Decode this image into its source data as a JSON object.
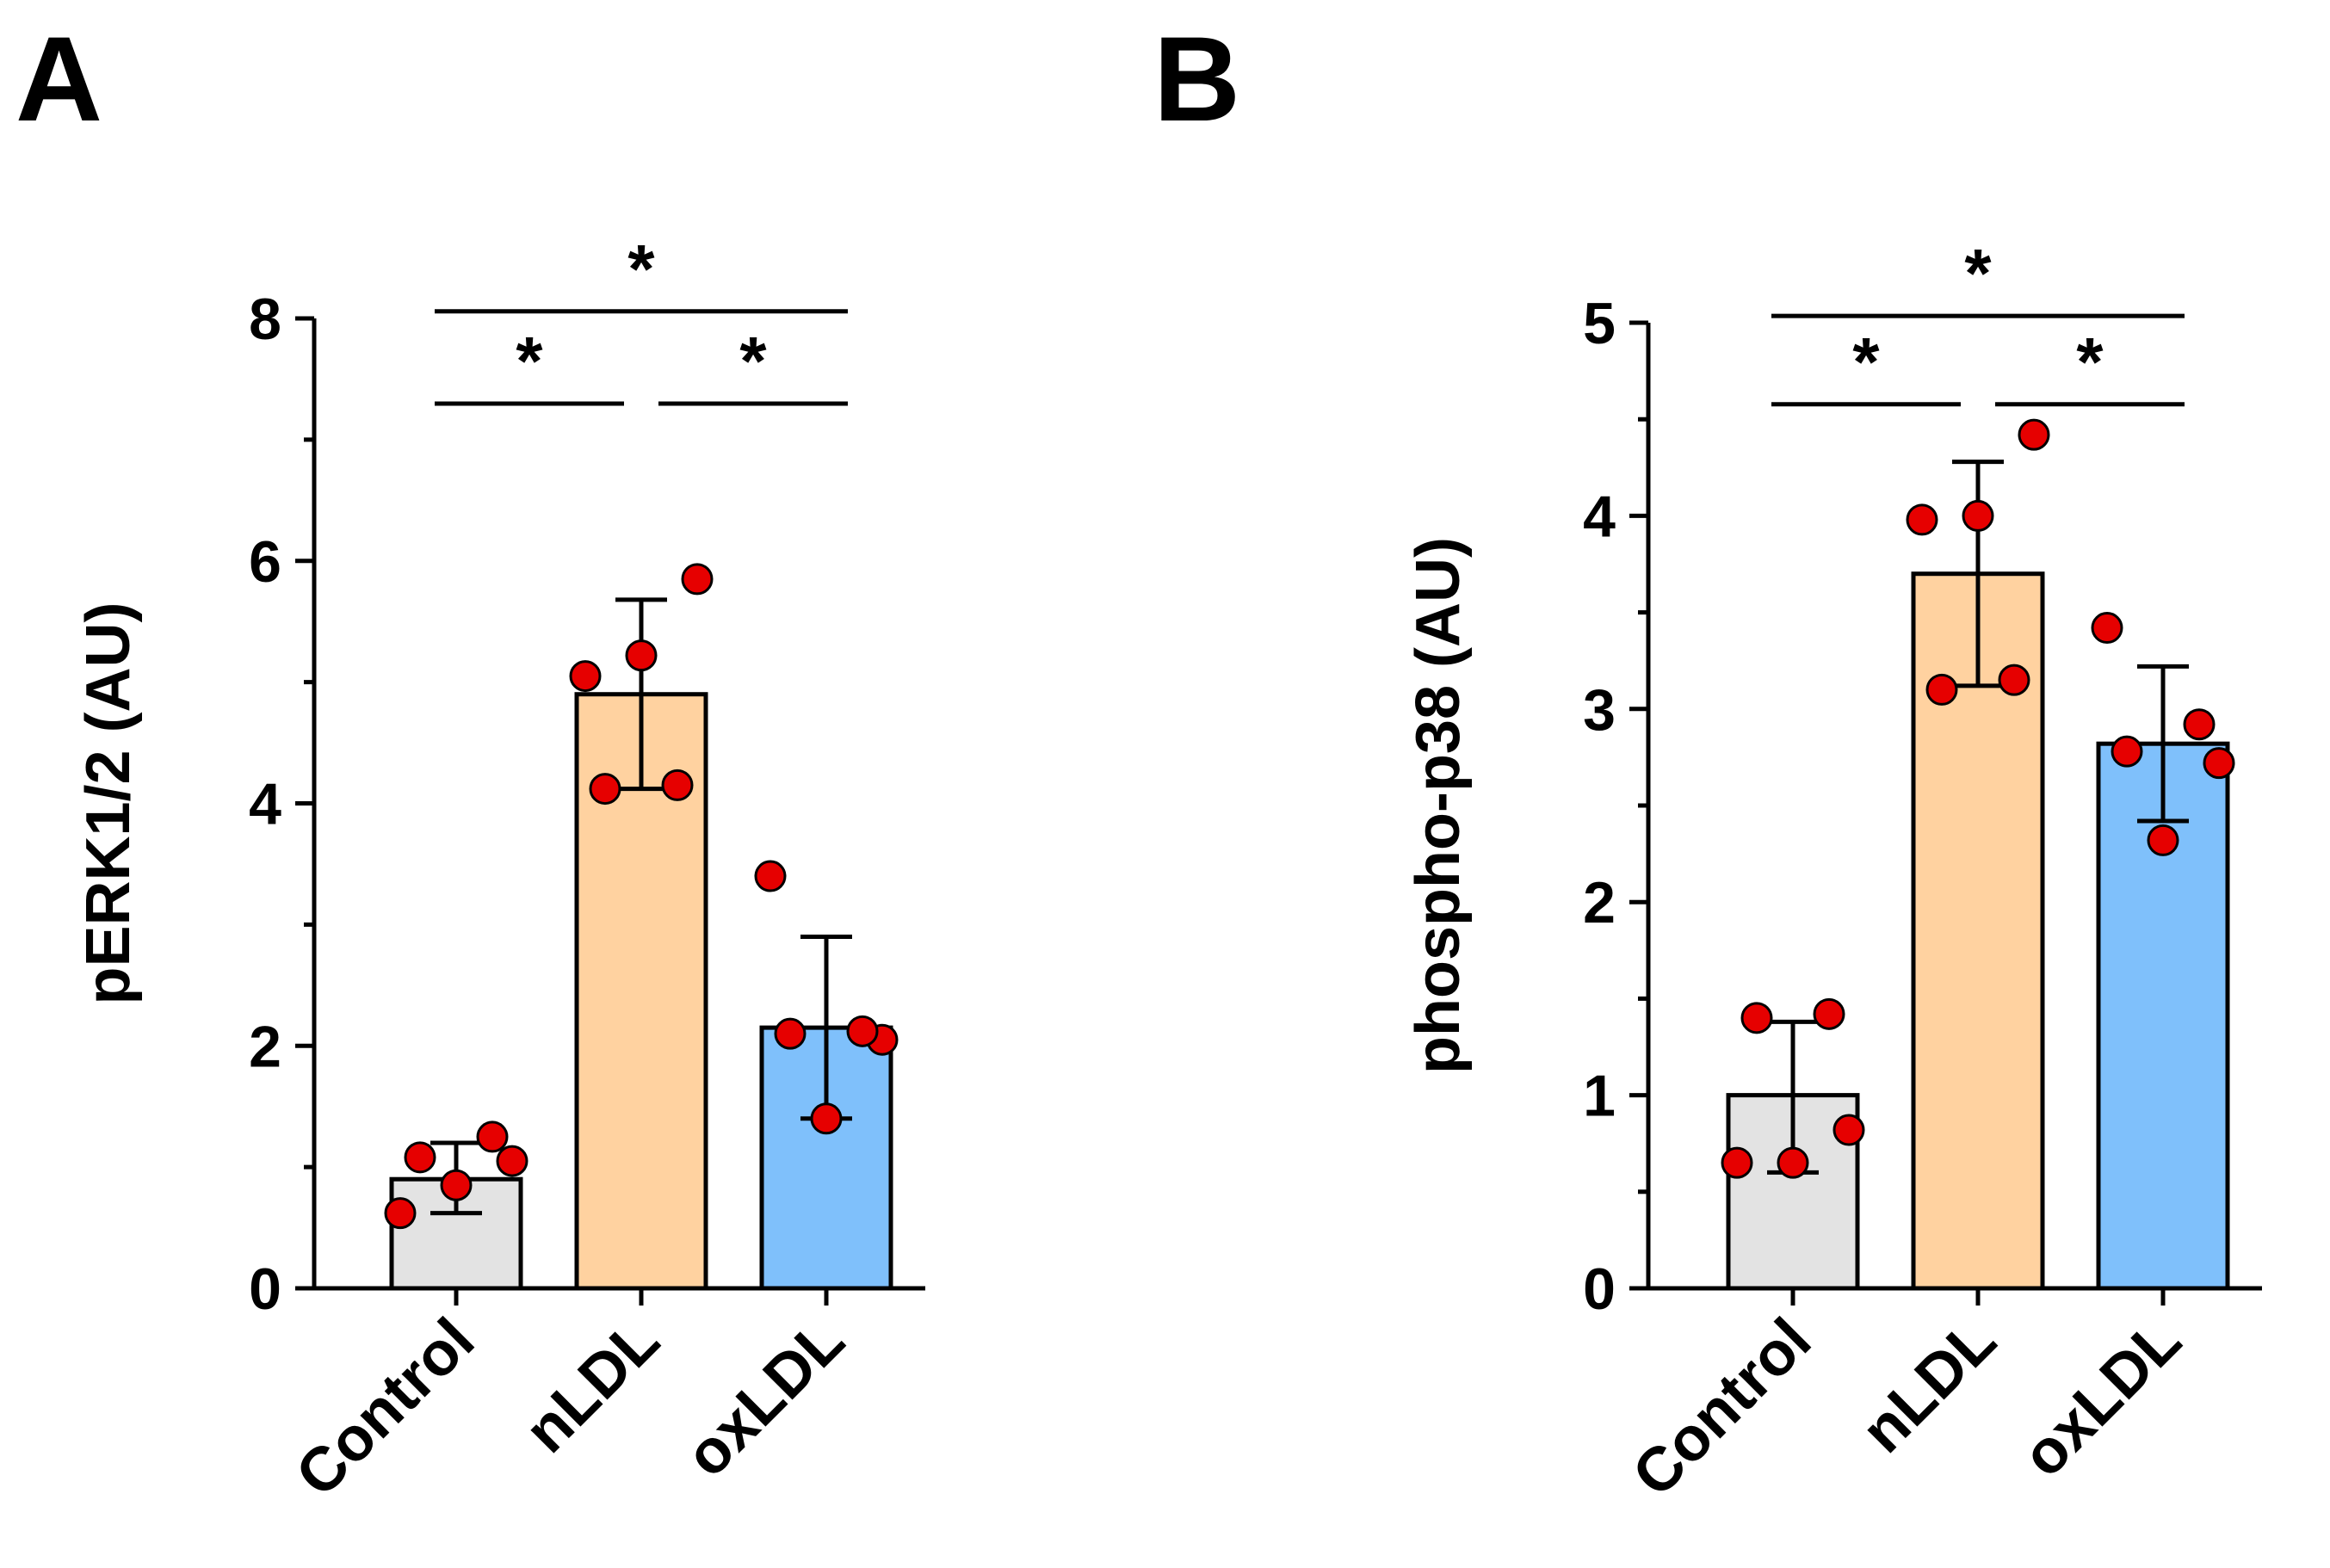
{
  "figure": {
    "panel_labels": [
      "A",
      "B"
    ]
  },
  "colors": {
    "control": "#e3e3e3",
    "nLDL": "#ffd2a0",
    "oxLDL": "#7fc0fb",
    "point": "#e60000",
    "axis": "#000000"
  },
  "chart_data": [
    {
      "panel": "A",
      "type": "bar",
      "title": "",
      "xlabel": "",
      "ylabel": "pERK1/2 (AU)",
      "ylim": [
        0,
        8
      ],
      "yticks": [
        0,
        2,
        4,
        6,
        8
      ],
      "categories": [
        "Control",
        "nLDL",
        "oxLDL"
      ],
      "values": [
        0.9,
        4.9,
        2.15
      ],
      "error": [
        [
          0.62,
          1.2
        ],
        [
          4.12,
          5.68
        ],
        [
          1.4,
          2.9
        ]
      ],
      "points": [
        [
          0.62,
          0.85,
          1.05,
          1.08,
          1.25
        ],
        [
          4.12,
          4.15,
          5.05,
          5.22,
          5.85
        ],
        [
          1.4,
          2.05,
          2.1,
          2.12,
          3.4
        ]
      ],
      "significance": [
        {
          "from": 0,
          "to": 1,
          "label": "*",
          "level": 1
        },
        {
          "from": 1,
          "to": 2,
          "label": "*",
          "level": 1
        },
        {
          "from": 0,
          "to": 2,
          "label": "*",
          "level": 2
        }
      ]
    },
    {
      "panel": "B",
      "type": "bar",
      "title": "",
      "xlabel": "",
      "ylabel": "phospho-p38 (AU)",
      "ylim": [
        0,
        5
      ],
      "yticks": [
        0,
        1,
        2,
        3,
        4,
        5
      ],
      "categories": [
        "Control",
        "nLDL",
        "oxLDL"
      ],
      "values": [
        1.0,
        3.7,
        2.82
      ],
      "error": [
        [
          0.6,
          1.38
        ],
        [
          3.12,
          4.28
        ],
        [
          2.42,
          3.22
        ]
      ],
      "points": [
        [
          0.65,
          0.65,
          0.82,
          1.4,
          1.42
        ],
        [
          3.1,
          3.15,
          3.98,
          4.0,
          4.42
        ],
        [
          2.32,
          2.72,
          2.78,
          2.92,
          3.42
        ]
      ],
      "significance": [
        {
          "from": 0,
          "to": 1,
          "label": "*",
          "level": 1
        },
        {
          "from": 1,
          "to": 2,
          "label": "*",
          "level": 1
        },
        {
          "from": 0,
          "to": 2,
          "label": "*",
          "level": 2
        }
      ]
    }
  ]
}
